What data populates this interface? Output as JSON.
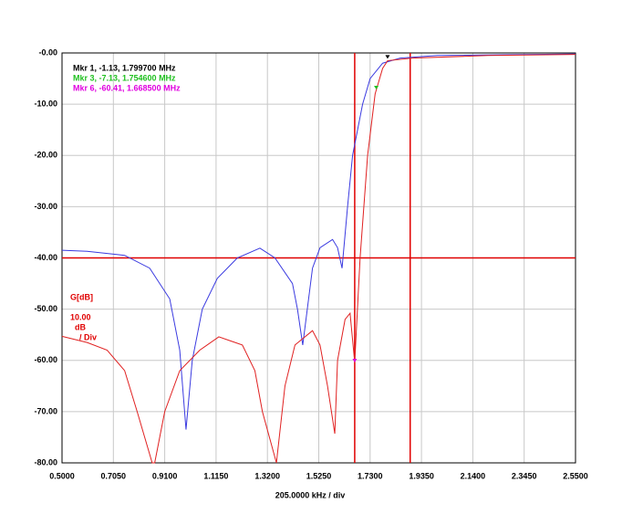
{
  "chart_data": {
    "type": "line",
    "x_label": "205.0000 kHz / div",
    "y_unit_label": "G[dB]",
    "scale_lines": [
      "10.00",
      "dB",
      "/ Div"
    ],
    "xlim": [
      0.5,
      2.55
    ],
    "ylim": [
      -80,
      0
    ],
    "xticks": [
      {
        "value": 0.5,
        "label": "0.5000"
      },
      {
        "value": 0.705,
        "label": "0.7050"
      },
      {
        "value": 0.91,
        "label": "0.9100"
      },
      {
        "value": 1.115,
        "label": "1.1150"
      },
      {
        "value": 1.32,
        "label": "1.3200"
      },
      {
        "value": 1.525,
        "label": "1.5250"
      },
      {
        "value": 1.73,
        "label": "1.7300"
      },
      {
        "value": 1.935,
        "label": "1.9350"
      },
      {
        "value": 2.14,
        "label": "2.1400"
      },
      {
        "value": 2.345,
        "label": "2.3450"
      },
      {
        "value": 2.55,
        "label": "2.5500"
      }
    ],
    "yticks": [
      {
        "value": 0,
        "label": "-0.00"
      },
      {
        "value": -10,
        "label": "-10.00"
      },
      {
        "value": -20,
        "label": "-20.00"
      },
      {
        "value": -30,
        "label": "-30.00"
      },
      {
        "value": -40,
        "label": "-40.00"
      },
      {
        "value": -50,
        "label": "-50.00"
      },
      {
        "value": -60,
        "label": "-60.00"
      },
      {
        "value": -70,
        "label": "-70.00"
      },
      {
        "value": -80,
        "label": "-80.00"
      }
    ],
    "grid": true,
    "series": [
      {
        "color": "#3a3ae0",
        "x": [
          0.5,
          0.6,
          0.75,
          0.85,
          0.93,
          0.97,
          0.995,
          1.02,
          1.06,
          1.12,
          1.2,
          1.29,
          1.35,
          1.42,
          1.44,
          1.461,
          1.5,
          1.53,
          1.58,
          1.6,
          1.618,
          1.64,
          1.66,
          1.7,
          1.73,
          1.78,
          1.85,
          2.0,
          2.55
        ],
        "values": [
          -38.5,
          -38.7,
          -39.5,
          -42,
          -48,
          -58,
          -73.5,
          -60,
          -50,
          -44,
          -40,
          -38.1,
          -40,
          -45,
          -50,
          -57,
          -42,
          -38,
          -36.4,
          -38,
          -42,
          -30,
          -20,
          -10,
          -5,
          -2,
          -1,
          -0.5,
          -0.2
        ]
      },
      {
        "color": "#e02020",
        "x": [
          0.5,
          0.6,
          0.68,
          0.75,
          0.8,
          0.86,
          0.87,
          0.91,
          0.97,
          1.05,
          1.126,
          1.22,
          1.27,
          1.3,
          1.356,
          1.39,
          1.43,
          1.5,
          1.53,
          1.56,
          1.589,
          1.6,
          1.63,
          1.65,
          1.6685,
          1.69,
          1.72,
          1.75,
          1.78,
          1.8,
          1.9,
          2.2,
          2.55
        ],
        "values": [
          -55.3,
          -56.5,
          -58,
          -62,
          -70,
          -80,
          -80,
          -70,
          -62,
          -58,
          -55.4,
          -57,
          -62,
          -70,
          -80,
          -65,
          -57,
          -54.2,
          -57,
          -65,
          -74.3,
          -60,
          -52,
          -50.8,
          -60.41,
          -40,
          -20,
          -8,
          -3,
          -1.5,
          -1,
          -0.5,
          -0.3
        ]
      }
    ],
    "hlines": [
      -40
    ],
    "vlines": [
      1.6685,
      1.89
    ],
    "ref_color": "#e00000",
    "markers": [
      {
        "label": "Mkr 1, -1.13, 1.799700 MHz",
        "color": "#000000",
        "x": 1.7997,
        "y": -1.13
      },
      {
        "label": "Mkr 3, -7.13, 1.754600 MHz",
        "color": "#20c020",
        "x": 1.7546,
        "y": -7.13
      },
      {
        "label": "Mkr 6, -60.41, 1.668500 MHz",
        "color": "#e000e0",
        "x": 1.6685,
        "y": -60.41
      }
    ]
  }
}
